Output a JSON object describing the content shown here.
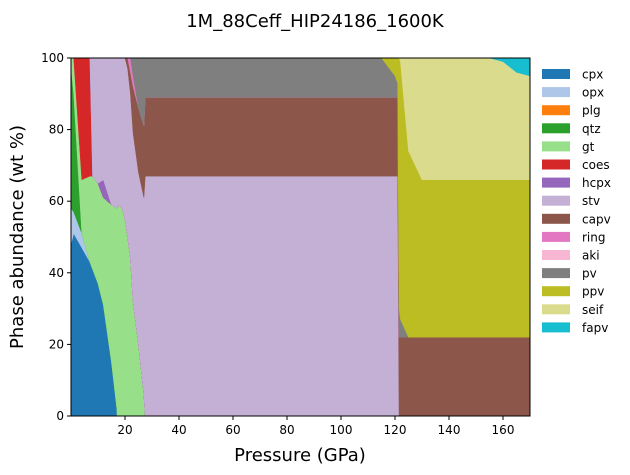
{
  "chart_data": {
    "type": "area",
    "title": "1M_88Ceff_HIP24186_1600K",
    "xlabel": "Pressure (GPa)",
    "ylabel": "Phase abundance (wt %)",
    "xlim": [
      0,
      170
    ],
    "ylim": [
      0,
      100
    ],
    "xticks": [
      20,
      40,
      60,
      80,
      100,
      120,
      140,
      160
    ],
    "yticks": [
      0,
      20,
      40,
      60,
      80,
      100
    ],
    "grid": false,
    "legend_position": "right",
    "x": [
      0,
      1,
      4,
      7,
      8,
      10,
      12,
      15,
      17,
      17.1,
      19,
      20,
      21,
      22,
      23,
      25,
      27,
      27.5,
      30,
      40,
      60,
      80,
      100,
      115,
      118,
      120,
      121,
      121.5,
      122,
      125,
      130,
      140,
      150,
      155,
      160,
      165,
      170
    ],
    "series": [
      {
        "name": "cpx",
        "color": "#1f77b4",
        "values": [
          48,
          51,
          47,
          43,
          41,
          37,
          31,
          15,
          2,
          0,
          0,
          0,
          0,
          0,
          0,
          0,
          0,
          0,
          0,
          0,
          0,
          0,
          0,
          0,
          0,
          0,
          0,
          0,
          0,
          0,
          0,
          0,
          0,
          0,
          0,
          0,
          0
        ]
      },
      {
        "name": "opx",
        "color": "#aec7e8",
        "values": [
          10,
          6,
          4,
          0,
          0,
          0,
          0,
          0,
          0,
          0,
          0,
          0,
          0,
          0,
          0,
          0,
          0,
          0,
          0,
          0,
          0,
          0,
          0,
          0,
          0,
          0,
          0,
          0,
          0,
          0,
          0,
          0,
          0,
          0,
          0,
          0,
          0
        ]
      },
      {
        "name": "plg",
        "color": "#ff7f0e",
        "values": [
          0,
          0,
          0,
          0,
          0,
          0,
          0,
          0,
          0,
          0,
          0,
          0,
          0,
          0,
          0,
          0,
          0,
          0,
          0,
          0,
          0,
          0,
          0,
          0,
          0,
          0,
          0,
          0,
          0,
          0,
          0,
          0,
          0,
          0,
          0,
          0,
          0
        ]
      },
      {
        "name": "qtz",
        "color": "#2ca02c",
        "values": [
          40,
          33,
          0,
          0,
          0,
          0,
          0,
          0,
          0,
          0,
          0,
          0,
          0,
          0,
          0,
          0,
          0,
          0,
          0,
          0,
          0,
          0,
          0,
          0,
          0,
          0,
          0,
          0,
          0,
          0,
          0,
          0,
          0,
          0,
          0,
          0,
          0
        ]
      },
      {
        "name": "gt",
        "color": "#98df8a",
        "values": [
          2,
          10,
          15,
          24,
          26,
          28,
          30,
          44,
          56,
          59,
          58,
          55,
          50,
          44,
          32,
          20,
          6,
          0,
          0,
          0,
          0,
          0,
          0,
          0,
          0,
          0,
          0,
          0,
          0,
          0,
          0,
          0,
          0,
          0,
          0,
          0,
          0
        ]
      },
      {
        "name": "coes",
        "color": "#d62728",
        "values": [
          0,
          0,
          34,
          33,
          0,
          0,
          0,
          0,
          0,
          0,
          0,
          0,
          0,
          0,
          0,
          0,
          0,
          0,
          0,
          0,
          0,
          0,
          0,
          0,
          0,
          0,
          0,
          0,
          0,
          0,
          0,
          0,
          0,
          0,
          0,
          0,
          0
        ]
      },
      {
        "name": "hcpx",
        "color": "#9467bd",
        "values": [
          0,
          0,
          0,
          0,
          0,
          0,
          5,
          0,
          0,
          0,
          0,
          0,
          0,
          0,
          0,
          0,
          0,
          0,
          0,
          0,
          0,
          0,
          0,
          0,
          0,
          0,
          0,
          0,
          0,
          0,
          0,
          0,
          0,
          0,
          0,
          0,
          0
        ]
      },
      {
        "name": "stv",
        "color": "#c5b0d5",
        "values": [
          0,
          0,
          0,
          0,
          33,
          35,
          34,
          41,
          42,
          41,
          42,
          45,
          47,
          46,
          47,
          48,
          55,
          67,
          67,
          67,
          67,
          67,
          67,
          67,
          67,
          67,
          67,
          0,
          0,
          0,
          0,
          0,
          0,
          0,
          0,
          0,
          0
        ]
      },
      {
        "name": "capv",
        "color": "#8c564b",
        "values": [
          0,
          0,
          0,
          0,
          0,
          0,
          0,
          0,
          0,
          0,
          0,
          0,
          3,
          6,
          13,
          18,
          20,
          22,
          22,
          22,
          22,
          22,
          22,
          22,
          22,
          22,
          22,
          22,
          22,
          22,
          22,
          22,
          22,
          22,
          22,
          22,
          22
        ]
      },
      {
        "name": "ring",
        "color": "#e377c2",
        "values": [
          0,
          0,
          0,
          0,
          0,
          0,
          0,
          0,
          0,
          0,
          0,
          0,
          0,
          4,
          3,
          0,
          0,
          0,
          0,
          0,
          0,
          0,
          0,
          0,
          0,
          0,
          0,
          0,
          0,
          0,
          0,
          0,
          0,
          0,
          0,
          0,
          0
        ]
      },
      {
        "name": "aki",
        "color": "#f7b6d2",
        "values": [
          0,
          0,
          0,
          0,
          0,
          0,
          0,
          0,
          0,
          0,
          0,
          0,
          0,
          0,
          0,
          0,
          0,
          0,
          0,
          0,
          0,
          0,
          0,
          0,
          0,
          0,
          0,
          0,
          0,
          0,
          0,
          0,
          0,
          0,
          0,
          0,
          0
        ]
      },
      {
        "name": "pv",
        "color": "#7f7f7f",
        "values": [
          0,
          0,
          0,
          0,
          0,
          0,
          0,
          0,
          0,
          0,
          0,
          0,
          0,
          0,
          5,
          14,
          19,
          11,
          11,
          11,
          11,
          11,
          11,
          11,
          8,
          6,
          4,
          8,
          5,
          0,
          0,
          0,
          0,
          0,
          0,
          0,
          0
        ]
      },
      {
        "name": "ppv",
        "color": "#bcbd22",
        "values": [
          0,
          0,
          0,
          0,
          0,
          0,
          0,
          0,
          0,
          0,
          0,
          0,
          0,
          0,
          0,
          0,
          0,
          0,
          0,
          0,
          0,
          0,
          0,
          0,
          3,
          5,
          7,
          70,
          72,
          52,
          44,
          44,
          44,
          44,
          44,
          44,
          44
        ]
      },
      {
        "name": "seif",
        "color": "#dbdb8d",
        "values": [
          0,
          0,
          0,
          0,
          0,
          0,
          0,
          0,
          0,
          0,
          0,
          0,
          0,
          0,
          0,
          0,
          0,
          0,
          0,
          0,
          0,
          0,
          0,
          0,
          0,
          0,
          0,
          0,
          1,
          26,
          34,
          34,
          34,
          34,
          33,
          30,
          29
        ]
      },
      {
        "name": "fapv",
        "color": "#17becf",
        "values": [
          0,
          0,
          0,
          0,
          0,
          0,
          0,
          0,
          0,
          0,
          0,
          0,
          0,
          0,
          0,
          0,
          0,
          0,
          0,
          0,
          0,
          0,
          0,
          0,
          0,
          0,
          0,
          0,
          0,
          0,
          0,
          0,
          0,
          0,
          1,
          4,
          5
        ]
      }
    ]
  }
}
